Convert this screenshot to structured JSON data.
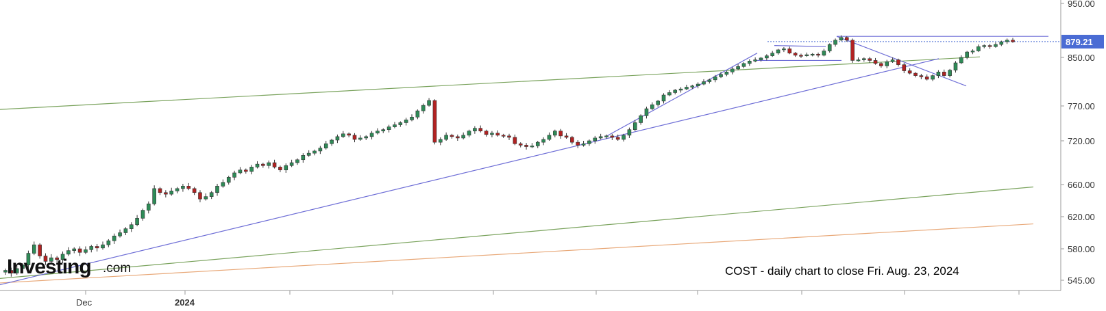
{
  "chart_data": {
    "type": "candlestick",
    "ticker_annotation": "COST - daily chart to close Fri. Aug. 23, 2024",
    "logo": {
      "main": "Investing",
      "suffix": ".com"
    },
    "y_axis": {
      "ticks": [
        "950.00",
        "850.00",
        "770.00",
        "720.00",
        "660.00",
        "620.00",
        "580.00",
        "545.00"
      ],
      "range": [
        535,
        960
      ],
      "position": "right"
    },
    "x_axis": {
      "labels": [
        {
          "text": "Dec",
          "bold": false
        },
        {
          "text": "2024",
          "bold": true
        }
      ]
    },
    "last_price": {
      "value": 879.21,
      "label": "879.21",
      "color": "#4a6cd4"
    },
    "grid": false,
    "candle_colors": {
      "up": "#2e8b57",
      "down": "#b22222"
    },
    "series": [
      {
        "name": "",
        "approx_daily_closes": [
          556,
          553,
          558,
          562,
          575,
          585,
          572,
          566,
          570,
          568,
          574,
          578,
          580,
          576,
          579,
          583,
          581,
          585,
          590,
          596,
          600,
          605,
          610,
          618,
          628,
          636,
          655,
          650,
          648,
          652,
          655,
          658,
          655,
          650,
          642,
          645,
          650,
          658,
          663,
          670,
          676,
          680,
          678,
          684,
          688,
          686,
          690,
          684,
          680,
          686,
          690,
          694,
          700,
          703,
          706,
          710,
          716,
          721,
          726,
          730,
          728,
          722,
          724,
          726,
          731,
          734,
          736,
          740,
          743,
          746,
          750,
          754,
          763,
          771,
          779,
          718,
          722,
          728,
          726,
          724,
          728,
          734,
          738,
          734,
          729,
          731,
          728,
          727,
          725,
          716,
          714,
          712,
          713,
          718,
          722,
          728,
          734,
          727,
          725,
          718,
          714,
          716,
          720,
          724,
          726,
          727,
          725,
          722,
          728,
          736,
          746,
          756,
          766,
          772,
          778,
          788,
          792,
          796,
          798,
          801,
          803,
          806,
          810,
          813,
          818,
          822,
          826,
          831,
          835,
          840,
          844,
          846,
          849,
          853,
          858,
          864,
          866,
          858,
          854,
          853,
          855,
          856,
          854,
          862,
          874,
          882,
          887,
          882,
          845,
          846,
          848,
          845,
          840,
          836,
          843,
          846,
          838,
          828,
          824,
          820,
          818,
          814,
          820,
          826,
          820,
          829,
          841,
          850,
          860,
          862,
          870,
          872,
          870,
          874,
          879,
          882,
          879
        ]
      }
    ],
    "trendlines": [
      {
        "color": "#6d6dd6",
        "description": "uptrend support from Nov 2023 low"
      },
      {
        "color": "#6d6dd6",
        "description": "steep uptrend from April low"
      },
      {
        "color": "#6d6dd6",
        "description": "downtrend from June high"
      },
      {
        "color": "#6d6dd6",
        "description": "horizontal resistance at high"
      },
      {
        "color": "#6d6dd6",
        "description": "horizontal support band"
      },
      {
        "color": "#7aa35d",
        "description": "upper channel line"
      },
      {
        "color": "#7aa35d",
        "description": "lower channel line"
      },
      {
        "color": "#e8a878",
        "description": "long-term support line"
      }
    ]
  }
}
